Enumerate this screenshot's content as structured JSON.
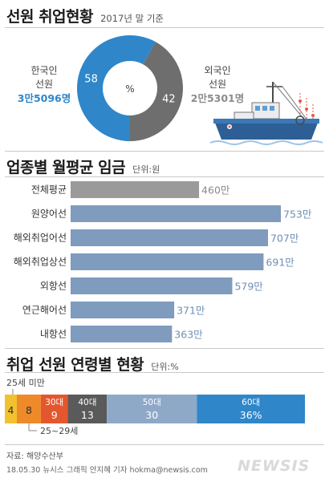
{
  "section1": {
    "title": "선원 취업현황",
    "subtitle": "2017년 말 기준",
    "center_label": "%",
    "domestic": {
      "label_line1": "한국인",
      "label_line2": "선원",
      "count": "3만5096명",
      "percent": 58,
      "color": "#2f86c9"
    },
    "foreign": {
      "label_line1": "외국인",
      "label_line2": "선원",
      "count": "2만5301명",
      "percent": 42,
      "color": "#6e6e6e"
    }
  },
  "section2": {
    "title": "업종별 월평균 임금",
    "unit": "단위:원"
  },
  "section3": {
    "title": "취업 선원 연령별 현황",
    "unit": "단위:%",
    "note_under25": "25세 미만",
    "note_25_29": "25~29세"
  },
  "chart_data": [
    {
      "type": "pie",
      "title": "선원 취업현황",
      "categories": [
        "한국인 선원",
        "외국인 선원"
      ],
      "values": [
        58,
        42
      ],
      "counts": [
        "3만5096명",
        "2만5301명"
      ],
      "colors": [
        "#2f86c9",
        "#6e6e6e"
      ]
    },
    {
      "type": "bar",
      "orientation": "horizontal",
      "title": "업종별 월평균 임금",
      "categories": [
        "전체평균",
        "원양어선",
        "해외취업어선",
        "해외취업상선",
        "외항선",
        "연근해어선",
        "내항선"
      ],
      "values": [
        460,
        753,
        707,
        691,
        579,
        371,
        363
      ],
      "value_labels": [
        "460만",
        "753만",
        "707만",
        "691만",
        "579만",
        "371만",
        "363만"
      ],
      "colors": [
        "#9a9a9a",
        "#7f9bbd",
        "#7f9bbd",
        "#7f9bbd",
        "#7f9bbd",
        "#7f9bbd",
        "#7f9bbd"
      ],
      "xlim": [
        0,
        753
      ]
    },
    {
      "type": "bar",
      "orientation": "stacked-horizontal",
      "title": "취업 선원 연령별 현황",
      "segments": [
        {
          "category": "",
          "value": 4,
          "value_label": "4",
          "color": "#f2c12e",
          "text_color": "#333333"
        },
        {
          "category": "",
          "value": 8,
          "value_label": "8",
          "color": "#ee8a2a",
          "text_color": "#333333"
        },
        {
          "category": "30대",
          "value": 9,
          "value_label": "9",
          "color": "#e4572e",
          "text_color": "#ffffff"
        },
        {
          "category": "40대",
          "value": 13,
          "value_label": "13",
          "color": "#5a5a5a",
          "text_color": "#ffffff"
        },
        {
          "category": "50대",
          "value": 30,
          "value_label": "30",
          "color": "#8ea8c8",
          "text_color": "#ffffff"
        },
        {
          "category": "60대",
          "value": 36,
          "value_label": "36%",
          "color": "#2f86c9",
          "text_color": "#ffffff"
        }
      ]
    }
  ],
  "footer": {
    "source": "자료: 해양수산부",
    "credit": "18.05.30 뉴시스 그래픽 안지혜 기자  hokma@newsis.com",
    "watermark": "NEWSIS"
  }
}
